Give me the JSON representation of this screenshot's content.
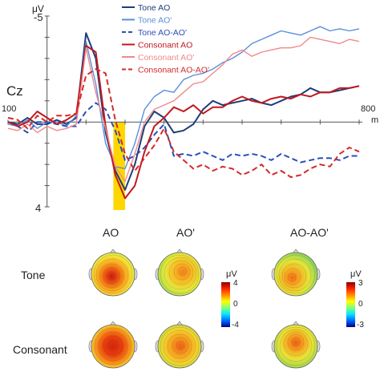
{
  "chart_data": {
    "type": "line",
    "channel": "Cz",
    "ylabel": "μV",
    "xlabel": "m",
    "ylim": [
      -5,
      4
    ],
    "y_inverted": true,
    "xlim": [
      -100,
      800
    ],
    "x_tick_labels": [
      "100",
      "800"
    ],
    "y_tick_labels": [
      "-5",
      "4"
    ],
    "highlight_window": [
      170,
      200
    ],
    "highlight_color": "#ffd700",
    "legend_position": "top-center",
    "x": [
      -100,
      -75,
      -50,
      -25,
      0,
      25,
      50,
      75,
      100,
      125,
      150,
      175,
      200,
      225,
      250,
      275,
      300,
      325,
      350,
      375,
      400,
      425,
      450,
      475,
      500,
      525,
      550,
      575,
      600,
      625,
      650,
      675,
      700,
      725,
      750,
      775,
      800
    ],
    "series": [
      {
        "name": "Tone AO",
        "color": "#1f3d7a",
        "dash": "solid",
        "values": [
          0.0,
          0.1,
          -0.2,
          0.1,
          0.1,
          -0.1,
          0.1,
          -0.2,
          -4.2,
          -3.0,
          0.5,
          2.3,
          3.2,
          2.0,
          0.2,
          -0.5,
          -0.2,
          0.5,
          0.4,
          0.1,
          -0.6,
          -1.0,
          -0.8,
          -0.9,
          -1.0,
          -1.1,
          -0.9,
          -0.8,
          -1.0,
          -1.2,
          -1.3,
          -1.6,
          -1.4,
          -1.4,
          -1.5,
          -1.6,
          -1.7
        ]
      },
      {
        "name": "Tone AO'",
        "color": "#5b8fd9",
        "dash": "solid",
        "values": [
          0.1,
          0.2,
          -0.1,
          0.3,
          0.0,
          0.0,
          0.2,
          -0.3,
          -3.8,
          -1.8,
          1.0,
          2.1,
          2.2,
          1.0,
          -0.6,
          -1.2,
          -1.5,
          -1.4,
          -2.0,
          -2.2,
          -2.3,
          -2.5,
          -2.8,
          -3.0,
          -3.3,
          -3.7,
          -3.9,
          -4.1,
          -4.3,
          -4.2,
          -4.1,
          -4.3,
          -4.5,
          -4.3,
          -4.4,
          -4.3,
          -4.4
        ]
      },
      {
        "name": "Tone AO-AO'",
        "color": "#2b4fb8",
        "dash": "dashed",
        "values": [
          0.0,
          0.2,
          0.5,
          0.0,
          0.0,
          0.1,
          0.2,
          0.2,
          -0.5,
          -0.9,
          -0.6,
          0.4,
          1.8,
          1.6,
          1.2,
          0.6,
          0.1,
          1.6,
          1.5,
          1.6,
          1.4,
          1.6,
          1.8,
          1.5,
          1.6,
          1.5,
          1.6,
          1.8,
          1.5,
          1.7,
          1.9,
          1.8,
          1.7,
          1.7,
          1.8,
          1.6,
          1.6
        ]
      },
      {
        "name": "Consonant AO",
        "color": "#c0191f",
        "dash": "solid",
        "values": [
          0.0,
          0.2,
          0.0,
          -0.5,
          -0.2,
          0.1,
          -0.1,
          -0.4,
          -3.6,
          -3.3,
          0.2,
          2.5,
          3.6,
          3.0,
          1.4,
          0.2,
          -0.2,
          -0.7,
          -0.5,
          -0.8,
          -0.4,
          -0.7,
          -0.7,
          -1.0,
          -1.2,
          -1.0,
          -0.9,
          -1.1,
          -1.2,
          -1.1,
          -1.3,
          -1.2,
          -1.4,
          -1.4,
          -1.6,
          -1.6,
          -1.7
        ]
      },
      {
        "name": "Consonant AO'",
        "color": "#f08a8a",
        "dash": "solid",
        "values": [
          0.3,
          0.4,
          0.1,
          0.5,
          0.2,
          0.4,
          0.3,
          0.1,
          -3.5,
          -1.4,
          0.3,
          2.1,
          2.8,
          1.5,
          0.0,
          -0.6,
          -0.8,
          -1.0,
          -1.4,
          -1.8,
          -1.9,
          -2.3,
          -2.7,
          -3.2,
          -3.4,
          -3.1,
          -3.3,
          -3.4,
          -3.5,
          -3.5,
          -3.6,
          -4.0,
          -3.9,
          -3.8,
          -3.7,
          -3.9,
          -3.8
        ]
      },
      {
        "name": "Consonant AO-AO'",
        "color": "#d42a2a",
        "dash": "dashed",
        "values": [
          -0.2,
          -0.1,
          0.3,
          -0.3,
          0.0,
          -0.3,
          -0.3,
          -0.4,
          -2.2,
          -2.5,
          -2.3,
          -0.1,
          1.5,
          2.3,
          1.7,
          1.1,
          0.3,
          1.4,
          1.8,
          2.2,
          2.0,
          2.3,
          2.1,
          2.2,
          2.5,
          2.3,
          2.0,
          2.5,
          2.3,
          2.6,
          2.5,
          2.2,
          2.0,
          2.1,
          1.5,
          1.2,
          1.4
        ]
      }
    ]
  },
  "erp": {
    "channel_label": "Cz",
    "y_unit": "μV",
    "y_top_label": "-5",
    "y_bottom_label": "4",
    "x_left_label": "100",
    "x_right_label": "800",
    "x_unit": "m"
  },
  "topomaps": {
    "col_headers": [
      "AO",
      "AO'",
      "AO-AO'"
    ],
    "row_labels": [
      "Tone",
      "Consonant"
    ],
    "colorbar_left": {
      "unit": "μV",
      "max": "4",
      "mid": "0",
      "min": "-4"
    },
    "colorbar_right": {
      "unit": "μV",
      "max": "3",
      "mid": "0",
      "min": "-3"
    }
  }
}
